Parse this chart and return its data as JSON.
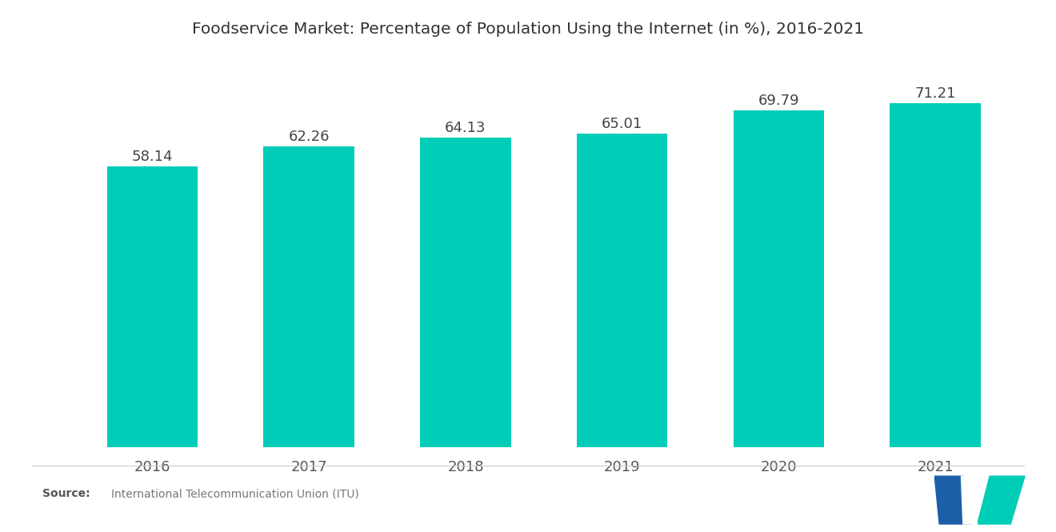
{
  "title": "Foodservice Market: Percentage of Population Using the Internet (in %), 2016-2021",
  "categories": [
    "2016",
    "2017",
    "2018",
    "2019",
    "2020",
    "2021"
  ],
  "values": [
    58.14,
    62.26,
    64.13,
    65.01,
    69.79,
    71.21
  ],
  "bar_color": "#00CDB8",
  "background_color": "#ffffff",
  "title_fontsize": 14.5,
  "label_fontsize": 13,
  "value_fontsize": 13,
  "source_bold": "Source:",
  "source_detail": "International Telecommunication Union (ITU)",
  "ylim_min": 0,
  "ylim_max": 75
}
